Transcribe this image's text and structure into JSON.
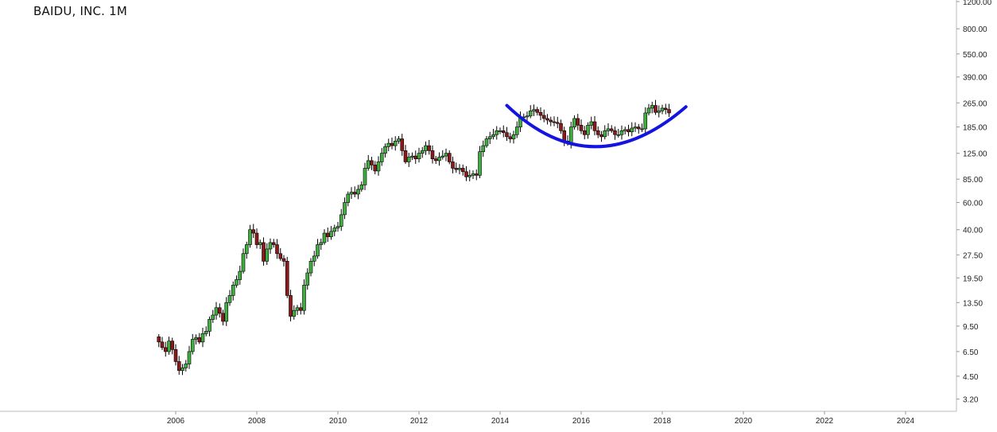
{
  "chart_data": {
    "type": "candlestick",
    "title": "BAIDU, INC. 1M",
    "interval": "monthly",
    "y_scale": "log",
    "y_ticks": [
      "1200.00",
      "800.00",
      "550.00",
      "390.00",
      "265.00",
      "185.00",
      "125.00",
      "85.00",
      "60.00",
      "40.00",
      "27.50",
      "19.50",
      "13.50",
      "9.50",
      "6.50",
      "4.50",
      "3.20"
    ],
    "x_ticks": [
      "2006",
      "2008",
      "2010",
      "2012",
      "2014",
      "2016",
      "2018",
      "2020",
      "2022",
      "2024"
    ],
    "start_month": "2005-08",
    "closes": [
      7.5,
      6.9,
      6.5,
      7.6,
      6.7,
      5.6,
      4.9,
      5.1,
      5.4,
      6.5,
      7.8,
      8.0,
      7.5,
      8.5,
      8.8,
      10.5,
      11.2,
      12.5,
      11.5,
      10.2,
      13.5,
      15,
      17.5,
      19,
      21.5,
      28,
      32,
      40,
      38,
      32,
      33,
      25,
      30,
      33,
      32,
      28,
      26,
      25,
      15,
      11,
      12,
      12.5,
      12,
      17.5,
      21,
      25,
      27,
      32,
      33,
      38,
      36,
      39,
      41,
      42,
      50,
      60,
      68,
      70,
      68,
      73,
      78,
      100,
      112,
      105,
      96,
      110,
      125,
      138,
      145,
      140,
      150,
      155,
      130,
      110,
      118,
      120,
      115,
      125,
      130,
      140,
      130,
      115,
      112,
      118,
      120,
      125,
      110,
      100,
      98,
      100,
      95,
      88,
      90,
      92,
      90,
      128,
      140,
      155,
      160,
      165,
      175,
      175,
      170,
      160,
      155,
      165,
      185,
      215,
      215,
      218,
      235,
      240,
      230,
      220,
      210,
      205,
      200,
      198,
      195,
      175,
      150,
      145,
      185,
      210,
      190,
      175,
      165,
      190,
      200,
      175,
      165,
      160,
      175,
      180,
      175,
      165,
      165,
      175,
      178,
      172,
      182,
      185,
      180,
      180,
      228,
      245,
      255,
      230,
      235,
      245,
      240,
      228
    ],
    "colors": {
      "up": "#3fae3f",
      "down": "#8b1a1a",
      "wick": "#000000",
      "annotation": "#1414e0"
    },
    "annotation": {
      "type": "rounding-bottom-arc",
      "points": [
        [
          "2014-03",
          255
        ],
        [
          "2016-05",
          138
        ],
        [
          "2018-08",
          250
        ]
      ]
    },
    "grid": false
  }
}
